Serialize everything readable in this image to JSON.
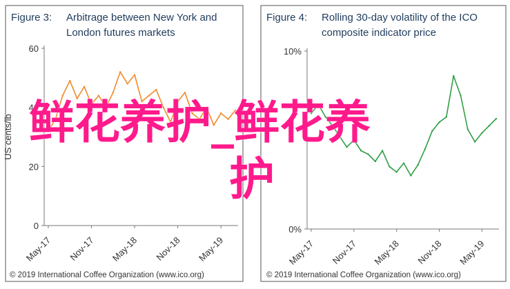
{
  "chart_data": [
    {
      "type": "line",
      "figure_label": "Figure 3:",
      "title_lines": [
        "Arbitrage between New York and",
        "London futures markets"
      ],
      "ylabel": "US cents/lb",
      "ylim": [
        0,
        60
      ],
      "yticks": [
        "0",
        "20",
        "40",
        "60"
      ],
      "xticks": [
        "May-17",
        "Nov-17",
        "May-18",
        "Nov-18",
        "May-19"
      ],
      "grid": false,
      "series": [
        {
          "color": "#f08a2b",
          "x": [
            "2017-05",
            "2017-06",
            "2017-07",
            "2017-08",
            "2017-09",
            "2017-10",
            "2017-11",
            "2017-12",
            "2018-01",
            "2018-02",
            "2018-03",
            "2018-04",
            "2018-05",
            "2018-06",
            "2018-07",
            "2018-08",
            "2018-09",
            "2018-10",
            "2018-11",
            "2018-12",
            "2019-01",
            "2019-02",
            "2019-03",
            "2019-04",
            "2019-05",
            "2019-06",
            "2019-07"
          ],
          "values": [
            32,
            36,
            44,
            49,
            43,
            47,
            41,
            44,
            40,
            45,
            52,
            48,
            51,
            42,
            44,
            46,
            40,
            35,
            42,
            45,
            38,
            36,
            40,
            34,
            38,
            36,
            39
          ]
        }
      ],
      "footer": "© 2019 International Coffee Organization (www.ico.org)"
    },
    {
      "type": "line",
      "figure_label": "Figure 4:",
      "title_lines": [
        "Rolling 30-day volatility of the ICO",
        "composite indicator price"
      ],
      "ylim": [
        0,
        10
      ],
      "ytick_values": [
        0,
        10
      ],
      "yticks": [
        "0%",
        "10%"
      ],
      "y_unit": "%",
      "xticks": [
        "May-17",
        "Nov-17",
        "May-18",
        "Nov-18",
        "May-19"
      ],
      "grid": false,
      "series": [
        {
          "color": "#2f9e44",
          "x": [
            "2017-05",
            "2017-06",
            "2017-07",
            "2017-08",
            "2017-09",
            "2017-10",
            "2017-11",
            "2017-12",
            "2018-01",
            "2018-02",
            "2018-03",
            "2018-04",
            "2018-05",
            "2018-06",
            "2018-07",
            "2018-08",
            "2018-09",
            "2018-10",
            "2018-11",
            "2018-12",
            "2019-01",
            "2019-02",
            "2019-03",
            "2019-04",
            "2019-05",
            "2019-06",
            "2019-07"
          ],
          "values": [
            6.5,
            7.0,
            6.3,
            5.8,
            5.2,
            4.6,
            5.0,
            4.4,
            4.2,
            3.8,
            4.4,
            3.5,
            3.2,
            3.7,
            3.0,
            3.6,
            4.5,
            5.5,
            6.0,
            6.3,
            8.6,
            7.5,
            5.6,
            4.9,
            5.4,
            5.8,
            6.2
          ]
        }
      ],
      "footer": "© 2019 International Coffee Organization (www.ico.org)"
    }
  ],
  "watermark": {
    "text": "鲜花养护_鲜花养护",
    "color": "#ff1a8c"
  }
}
